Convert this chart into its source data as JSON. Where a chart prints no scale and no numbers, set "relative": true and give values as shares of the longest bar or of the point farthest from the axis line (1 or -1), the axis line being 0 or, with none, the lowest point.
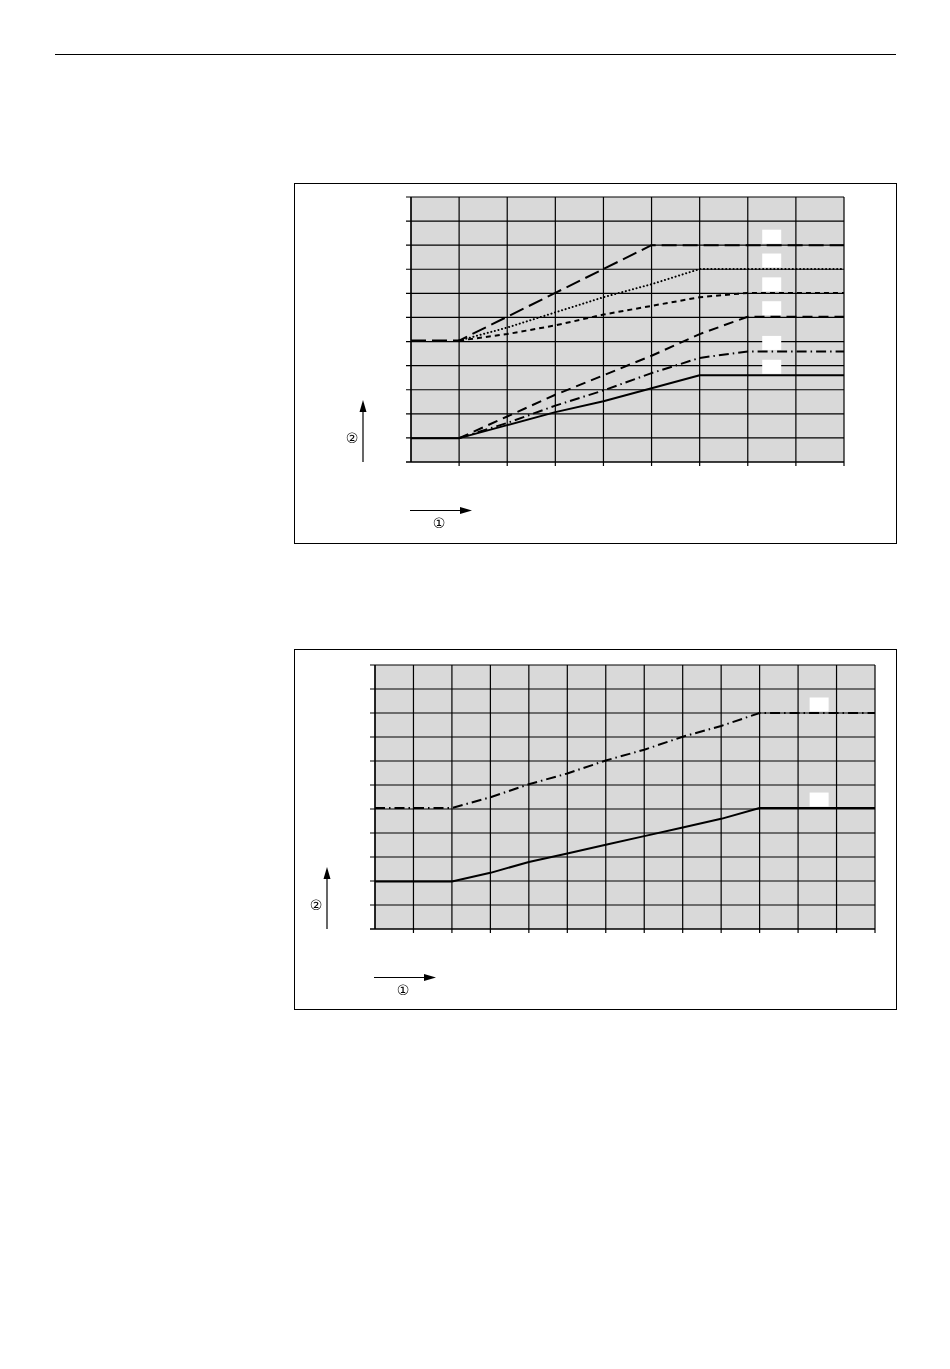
{
  "chart_data": [
    {
      "type": "line",
      "categories": [
        null,
        null,
        null,
        null,
        null,
        null,
        null,
        null,
        null,
        null
      ],
      "xlabel": "①",
      "ylabel": "②",
      "relative": true,
      "grid": true,
      "series": [
        {
          "color": "#000000",
          "line_style": "dashed",
          "values": [
            0.56,
            0.56,
            0.67,
            0.78,
            0.89,
            1,
            1,
            1,
            1,
            1
          ]
        },
        {
          "color": "#000000",
          "line_style": "dotted",
          "values": [
            null,
            0.56,
            0.62,
            0.69,
            0.76,
            0.82,
            0.89,
            0.89,
            0.89,
            0.89
          ]
        },
        {
          "color": "#000000",
          "line_style": "dashed",
          "values": [
            null,
            0.56,
            0.59,
            0.63,
            0.68,
            0.72,
            0.76,
            0.78,
            0.78,
            0.78
          ]
        },
        {
          "color": "#000000",
          "line_style": "dashed",
          "values": [
            null,
            0.11,
            0.21,
            0.31,
            0.4,
            0.49,
            0.59,
            0.67,
            0.67,
            0.67
          ]
        },
        {
          "color": "#000000",
          "line_style": "dashdot",
          "values": [
            null,
            0.11,
            0.18,
            0.26,
            0.33,
            0.41,
            0.48,
            0.51,
            0.51,
            0.51
          ]
        },
        {
          "color": "#000000",
          "line_style": "solid",
          "values": [
            0.11,
            0.11,
            0.17,
            0.23,
            0.28,
            0.34,
            0.4,
            0.4,
            0.4,
            0.4
          ]
        }
      ]
    },
    {
      "type": "line",
      "categories": [
        null,
        null,
        null,
        null,
        null,
        null,
        null,
        null,
        null,
        null,
        null,
        null,
        null,
        null
      ],
      "xlabel": "①",
      "ylabel": "②",
      "relative": true,
      "grid": true,
      "series": [
        {
          "color": "#000000",
          "line_style": "dashdot",
          "values": [
            0.56,
            0.56,
            0.56,
            0.61,
            0.67,
            0.72,
            0.78,
            0.83,
            0.89,
            0.94,
            1,
            1,
            1,
            1
          ]
        },
        {
          "color": "#000000",
          "line_style": "solid",
          "values": [
            0.22,
            0.22,
            0.22,
            0.26,
            0.31,
            0.35,
            0.39,
            0.43,
            0.47,
            0.51,
            0.56,
            0.56,
            0.56,
            0.56
          ]
        }
      ]
    }
  ]
}
